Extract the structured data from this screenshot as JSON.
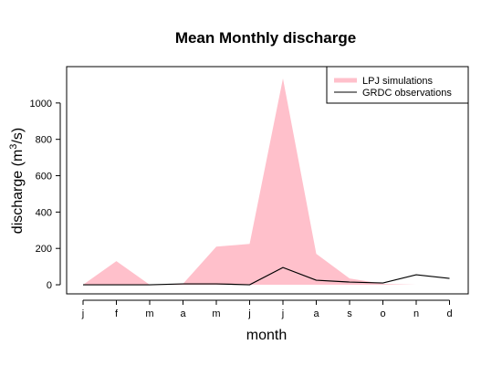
{
  "chart_data": {
    "type": "area",
    "title": "Mean Monthly discharge",
    "xlabel": "month",
    "ylabel": "discharge (m³/s)",
    "ylabel_parts": {
      "base": "discharge (m",
      "sup": "3",
      "tail": "/s)"
    },
    "categories": [
      "j",
      "f",
      "m",
      "a",
      "m",
      "j",
      "j",
      "a",
      "s",
      "o",
      "n",
      "d"
    ],
    "ylim": [
      -50,
      1200
    ],
    "yticks": [
      0,
      200,
      400,
      600,
      800,
      1000
    ],
    "grid": false,
    "legend_position": "top-right",
    "series": [
      {
        "name": "LPJ simulations",
        "kind": "band",
        "color": "#FFC0CB",
        "upper": [
          0,
          130,
          0,
          5,
          210,
          225,
          1135,
          170,
          35,
          5,
          0,
          0
        ],
        "lower": [
          0,
          0,
          0,
          0,
          0,
          0,
          0,
          0,
          0,
          0,
          0,
          0
        ]
      },
      {
        "name": "GRDC observations",
        "kind": "line",
        "color": "#000000",
        "values": [
          0,
          0,
          0,
          5,
          5,
          0,
          95,
          25,
          15,
          10,
          55,
          35
        ]
      }
    ]
  }
}
